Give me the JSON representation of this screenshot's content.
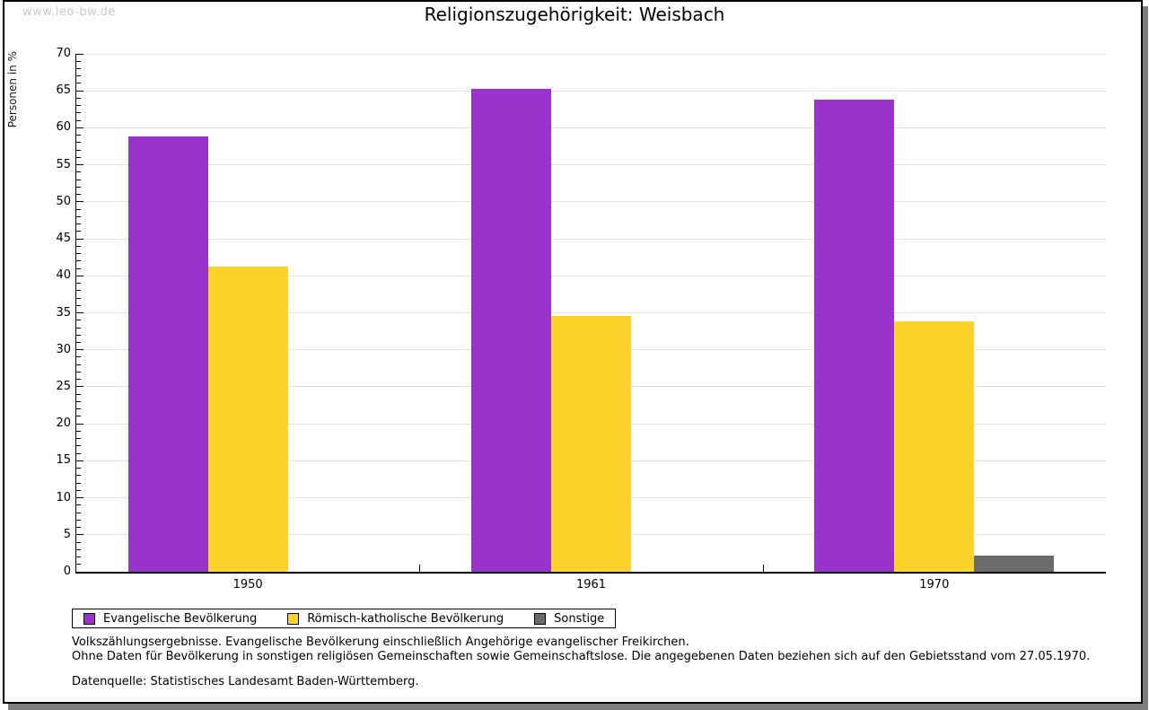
{
  "page": {
    "watermark": "www.leo-bw.de",
    "title": "Religionszugehörigkeit: Weisbach"
  },
  "chart_data": {
    "type": "bar",
    "title": "Religionszugehörigkeit: Weisbach",
    "xlabel": "",
    "ylabel": "Personen in %",
    "categories": [
      "1950",
      "1961",
      "1970"
    ],
    "series": [
      {
        "name": "Evangelische Bevölkerung",
        "color": "#9933cc",
        "values": [
          58.8,
          65.3,
          63.8
        ]
      },
      {
        "name": "Römisch-katholische Bevölkerung",
        "color": "#fdd32b",
        "values": [
          41.3,
          34.6,
          33.9
        ]
      },
      {
        "name": "Sonstige",
        "color": "#6b6b6b",
        "values": [
          null,
          null,
          2.2
        ]
      }
    ],
    "ylim": [
      0,
      70
    ],
    "ytick_step": 5,
    "minor_tick_step": 1,
    "grid": true,
    "gridline_color": "#e3e3e3",
    "legend_position": "bottom"
  },
  "footnotes": {
    "line1": "Volkszählungsergebnisse. Evangelische Bevölkerung einschließlich Angehörige evangelischer Freikirchen.",
    "line2": "Ohne Daten für Bevölkerung in sonstigen religiösen Gemeinschaften sowie Gemeinschaftslose. Die angegebenen Daten beziehen sich auf den Gebietsstand vom 27.05.1970.",
    "source": "Datenquelle: Statistisches Landesamt Baden-Württemberg."
  }
}
